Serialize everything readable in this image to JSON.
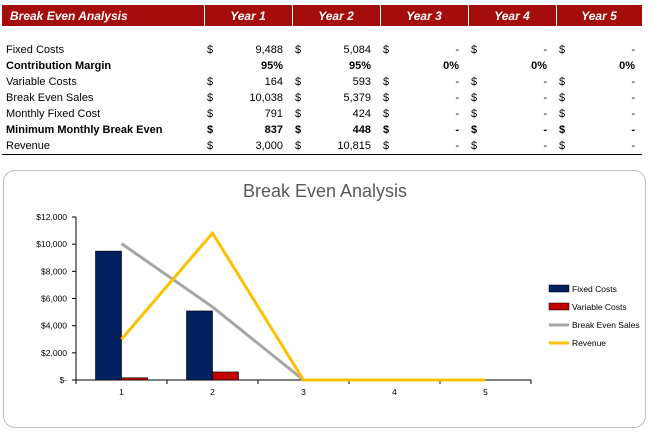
{
  "table": {
    "headers": [
      "Break Even Analysis",
      "Year 1",
      "Year 2",
      "Year 3",
      "Year 4",
      "Year 5"
    ],
    "currency_symbol": "$",
    "rows": [
      {
        "label": "Fixed Costs",
        "bold": false,
        "cells": [
          {
            "cur": "$",
            "val": "9,488"
          },
          {
            "cur": "$",
            "val": "5,084"
          },
          {
            "cur": "$",
            "val": "-"
          },
          {
            "cur": "$",
            "val": "-"
          },
          {
            "cur": "$",
            "val": "-"
          }
        ]
      },
      {
        "label": "Contribution Margin",
        "bold": true,
        "cells": [
          {
            "cur": "",
            "val": "95%"
          },
          {
            "cur": "",
            "val": "95%"
          },
          {
            "cur": "",
            "val": "0%"
          },
          {
            "cur": "",
            "val": "0%"
          },
          {
            "cur": "",
            "val": "0%"
          }
        ]
      },
      {
        "label": "Variable Costs",
        "bold": false,
        "cells": [
          {
            "cur": "$",
            "val": "164"
          },
          {
            "cur": "$",
            "val": "593"
          },
          {
            "cur": "$",
            "val": "-"
          },
          {
            "cur": "$",
            "val": "-"
          },
          {
            "cur": "$",
            "val": "-"
          }
        ]
      },
      {
        "label": "Break Even Sales",
        "bold": false,
        "cells": [
          {
            "cur": "$",
            "val": "10,038"
          },
          {
            "cur": "$",
            "val": "5,379"
          },
          {
            "cur": "$",
            "val": "-"
          },
          {
            "cur": "$",
            "val": "-"
          },
          {
            "cur": "$",
            "val": "-"
          }
        ]
      },
      {
        "label": "Monthly Fixed Cost",
        "bold": false,
        "cells": [
          {
            "cur": "$",
            "val": "791"
          },
          {
            "cur": "$",
            "val": "424"
          },
          {
            "cur": "$",
            "val": "-"
          },
          {
            "cur": "$",
            "val": "-"
          },
          {
            "cur": "$",
            "val": "-"
          }
        ]
      },
      {
        "label": "Minimum Monthly Break Even",
        "bold": true,
        "cells": [
          {
            "cur": "$",
            "val": "837"
          },
          {
            "cur": "$",
            "val": "448"
          },
          {
            "cur": "$",
            "val": "-"
          },
          {
            "cur": "$",
            "val": "-"
          },
          {
            "cur": "$",
            "val": "-"
          }
        ]
      },
      {
        "label": "Revenue",
        "bold": false,
        "cells": [
          {
            "cur": "$",
            "val": "3,000"
          },
          {
            "cur": "$",
            "val": "10,815"
          },
          {
            "cur": "$",
            "val": "-"
          },
          {
            "cur": "$",
            "val": "-"
          },
          {
            "cur": "$",
            "val": "-"
          }
        ]
      }
    ]
  },
  "chart_data": {
    "type": "bar",
    "title": "Break Even Analysis",
    "categories": [
      "1",
      "2",
      "3",
      "4",
      "5"
    ],
    "ylim": [
      0,
      12000
    ],
    "yticks": [
      0,
      2000,
      4000,
      6000,
      8000,
      10000,
      12000
    ],
    "ytick_labels": [
      "$-",
      "$2,000",
      "$4,000",
      "$6,000",
      "$8,000",
      "$10,000",
      "$12,000"
    ],
    "grid": false,
    "legend_position": "right",
    "series": [
      {
        "name": "Fixed Costs",
        "kind": "bar",
        "color": "#002060",
        "values": [
          9488,
          5084,
          0,
          0,
          0
        ]
      },
      {
        "name": "Variable Costs",
        "kind": "bar",
        "color": "#c00000",
        "values": [
          164,
          593,
          0,
          0,
          0
        ]
      },
      {
        "name": "Break Even Sales",
        "kind": "line",
        "color": "#a6a6a6",
        "values": [
          10038,
          5379,
          0,
          0,
          0
        ]
      },
      {
        "name": "Revenue",
        "kind": "line",
        "color": "#ffc000",
        "values": [
          3000,
          10815,
          0,
          0,
          0
        ]
      }
    ]
  }
}
